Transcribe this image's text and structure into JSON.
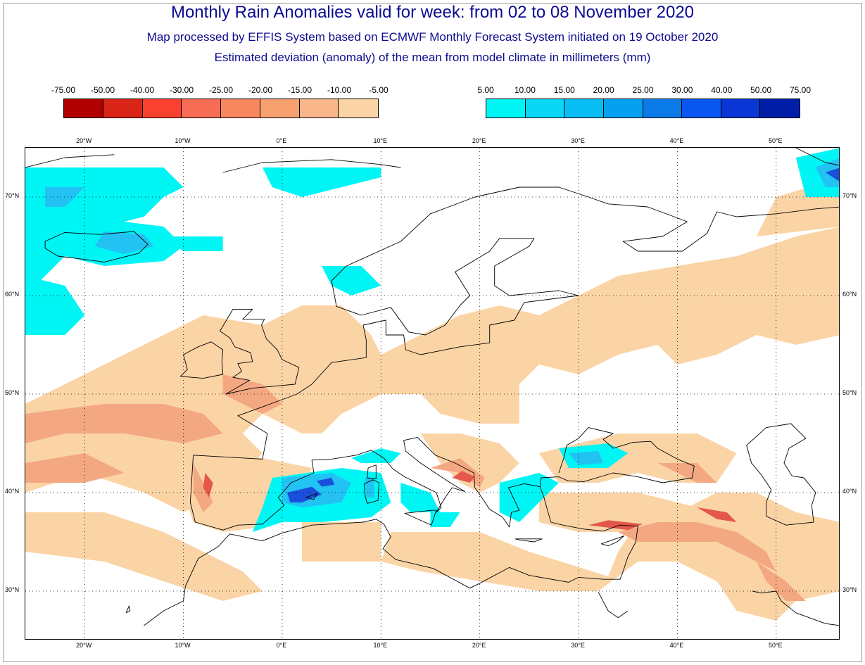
{
  "header": {
    "title": "Monthly Rain Anomalies valid for week: from 02 to 08 November 2020",
    "subtitle1": "Map processed by EFFIS System based on ECMWF Monthly Forecast System initiated on 19 October 2020",
    "subtitle2": "Estimated deviation (anomaly) of the mean from model climate in millimeters (mm)"
  },
  "legend_negative": {
    "labels": [
      "-75.00",
      "-50.00",
      "-40.00",
      "-30.00",
      "-25.00",
      "-20.00",
      "-15.00",
      "-10.00",
      "-5.00"
    ],
    "colors": [
      "#b00000",
      "#d92417",
      "#fa4030",
      "#f66c55",
      "#f8865f",
      "#f7a070",
      "#f8b68a",
      "#fbd4a6"
    ]
  },
  "legend_positive": {
    "labels": [
      "5.00",
      "10.00",
      "15.00",
      "20.00",
      "25.00",
      "30.00",
      "40.00",
      "50.00",
      "75.00"
    ],
    "colors": [
      "#00f5f5",
      "#0ad7f5",
      "#08bdf3",
      "#06a0f0",
      "#0a7ae8",
      "#0a56f0",
      "#0a36d6",
      "#001ea8"
    ]
  },
  "map": {
    "lon_range": [
      -26,
      56.5
    ],
    "lat_range": [
      25,
      75
    ],
    "lon_ticks": [
      "20°W",
      "10°W",
      "0°E",
      "10°E",
      "20°E",
      "30°E",
      "40°E",
      "50°E"
    ],
    "lat_ticks": [
      "30°N",
      "40°N",
      "50°N",
      "60°N",
      "70°N"
    ],
    "gridlines": true,
    "colors": {
      "dry_light": "#fbd4a6",
      "dry_mid": "#f4a882",
      "dry_strong": "#e4574b",
      "wet_light": "#00f5f5",
      "wet_mid": "#22c2f2",
      "wet_strong": "#1a4fdc",
      "coast": "#000000"
    }
  }
}
